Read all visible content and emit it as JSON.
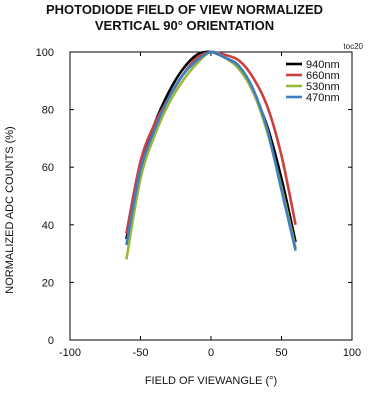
{
  "chart_data": {
    "type": "line",
    "title_lines": [
      "PHOTODIODE FIELD OF VIEW NORMALIZED",
      "VERTICAL 90° ORIENTATION"
    ],
    "code": "toc20",
    "xlabel": "FIELD OF VIEWANGLE (°)",
    "ylabel": "NORMALIZED ADC COUNTS (%)",
    "xlim": [
      -100,
      100
    ],
    "ylim": [
      0,
      100
    ],
    "x_ticks": [
      -100,
      -50,
      0,
      50,
      100
    ],
    "y_ticks": [
      0,
      20,
      40,
      60,
      80,
      100
    ],
    "grid": false,
    "legend_position": "top-right",
    "series": [
      {
        "name": "940nm",
        "color": "#000000",
        "points": [
          [
            -60,
            35
          ],
          [
            -50,
            60
          ],
          [
            -40,
            75
          ],
          [
            -30,
            86
          ],
          [
            -20,
            94
          ],
          [
            -10,
            99
          ],
          [
            0,
            100
          ],
          [
            10,
            98
          ],
          [
            20,
            95
          ],
          [
            30,
            86
          ],
          [
            40,
            74
          ],
          [
            50,
            56
          ],
          [
            60,
            34
          ]
        ]
      },
      {
        "name": "660nm",
        "color": "#cc3f3f",
        "points": [
          [
            -60,
            37
          ],
          [
            -50,
            62
          ],
          [
            -40,
            75
          ],
          [
            -30,
            84
          ],
          [
            -20,
            92
          ],
          [
            -10,
            98
          ],
          [
            0,
            100
          ],
          [
            10,
            99
          ],
          [
            20,
            97
          ],
          [
            30,
            91
          ],
          [
            40,
            81
          ],
          [
            50,
            64
          ],
          [
            60,
            40
          ]
        ]
      },
      {
        "name": "530nm",
        "color": "#9ab93a",
        "points": [
          [
            -60,
            28
          ],
          [
            -50,
            56
          ],
          [
            -40,
            71
          ],
          [
            -30,
            82
          ],
          [
            -20,
            90
          ],
          [
            -10,
            96
          ],
          [
            0,
            100
          ],
          [
            10,
            98
          ],
          [
            20,
            94
          ],
          [
            30,
            86
          ],
          [
            40,
            72
          ],
          [
            50,
            53
          ],
          [
            60,
            32
          ]
        ]
      },
      {
        "name": "470nm",
        "color": "#3f7fbf",
        "points": [
          [
            -60,
            33
          ],
          [
            -50,
            59
          ],
          [
            -40,
            73
          ],
          [
            -30,
            84
          ],
          [
            -20,
            92
          ],
          [
            -10,
            97
          ],
          [
            0,
            100
          ],
          [
            10,
            98
          ],
          [
            20,
            95
          ],
          [
            30,
            87
          ],
          [
            40,
            73
          ],
          [
            50,
            52
          ],
          [
            60,
            31
          ]
        ]
      }
    ]
  }
}
